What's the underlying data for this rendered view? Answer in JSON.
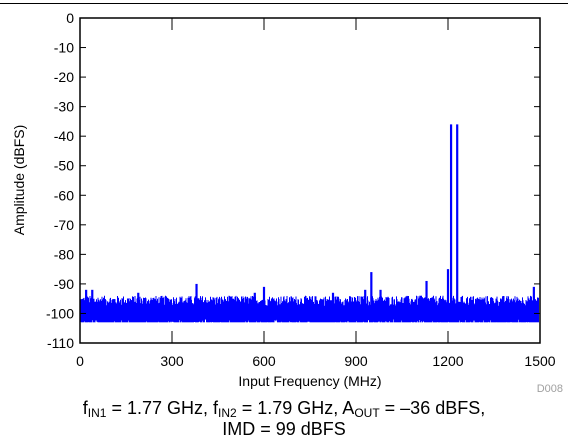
{
  "chart_data": {
    "type": "line",
    "xlabel": "Input Frequency (MHz)",
    "ylabel": "Amplitude (dBFS)",
    "xlim": [
      0,
      1500
    ],
    "ylim": [
      -110,
      0
    ],
    "x_ticks": [
      "0",
      "300",
      "600",
      "900",
      "1200",
      "1500"
    ],
    "y_ticks": [
      "0",
      "-10",
      "-20",
      "-30",
      "-40",
      "-50",
      "-60",
      "-70",
      "-80",
      "-90",
      "-100",
      "-110"
    ],
    "grid": false,
    "series_color": "#0000ff",
    "noise_floor_dbfs": -100,
    "peaks": [
      {
        "x": 20,
        "y": -92
      },
      {
        "x": 40,
        "y": -92
      },
      {
        "x": 190,
        "y": -93
      },
      {
        "x": 380,
        "y": -90
      },
      {
        "x": 545,
        "y": -95
      },
      {
        "x": 570,
        "y": -93
      },
      {
        "x": 600,
        "y": -91
      },
      {
        "x": 825,
        "y": -93
      },
      {
        "x": 930,
        "y": -92
      },
      {
        "x": 950,
        "y": -86
      },
      {
        "x": 980,
        "y": -92
      },
      {
        "x": 1110,
        "y": -94
      },
      {
        "x": 1130,
        "y": -89
      },
      {
        "x": 1200,
        "y": -85
      },
      {
        "x": 1210,
        "y": -36
      },
      {
        "x": 1230,
        "y": -36
      },
      {
        "x": 1480,
        "y": -91
      }
    ]
  },
  "figure_id": "D008",
  "caption": {
    "f1_sym": "f",
    "f1_sub": "IN1",
    "f1_val": " = 1.77 GHz, ",
    "f2_sym": "f",
    "f2_sub": "IN2",
    "f2_val": " = 1.79 GHz, ",
    "a_sym": "A",
    "a_sub": "OUT",
    "a_val": " = –36 dBFS,",
    "line2": "IMD = 99 dBFS"
  }
}
